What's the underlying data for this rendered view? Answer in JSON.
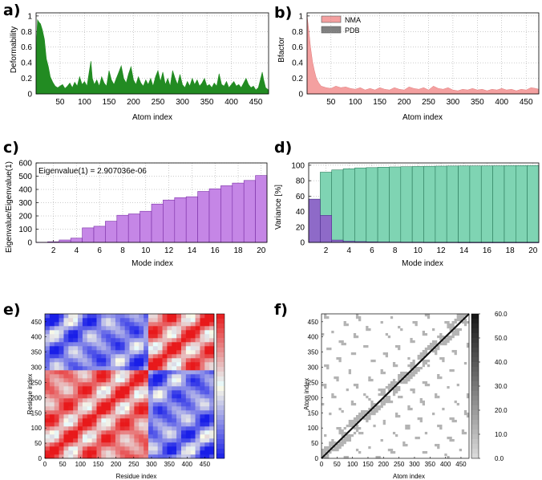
{
  "colors": {
    "deform": "#228b22",
    "nma": "#f4a0a0",
    "pdb": "#808080",
    "eigen": "#c586e6",
    "eigen_edge": "#7a2fa6",
    "variance_cum": "#7fd4b3",
    "variance_ind": "#8e6ac8",
    "corr_pos": "#e8191b",
    "corr_neg": "#1a22e0",
    "map_gray": "#b3b3b3",
    "map_dark": "#111111"
  },
  "chart_data": [
    {
      "id": "a",
      "panel_label": "a)",
      "type": "area",
      "xlabel": "Atom index",
      "ylabel": "Deformability",
      "xlim": [
        1,
        476
      ],
      "ylim": [
        0,
        1
      ],
      "xticks": [
        "50",
        "100",
        "150",
        "200",
        "250",
        "300",
        "350",
        "400",
        "450"
      ],
      "xtick_values": [
        50,
        100,
        150,
        200,
        250,
        300,
        350,
        400,
        450
      ],
      "yticks": [
        "0",
        "0.2",
        "0.4",
        "0.6",
        "0.8",
        "1"
      ],
      "ytick_values": [
        0,
        0.2,
        0.4,
        0.6,
        0.8,
        1
      ],
      "grid": true,
      "profile": [
        [
          1,
          0.55
        ],
        [
          4,
          0.95
        ],
        [
          7,
          0.92
        ],
        [
          10,
          0.9
        ],
        [
          14,
          0.82
        ],
        [
          18,
          0.7
        ],
        [
          22,
          0.45
        ],
        [
          26,
          0.35
        ],
        [
          30,
          0.22
        ],
        [
          35,
          0.15
        ],
        [
          40,
          0.1
        ],
        [
          45,
          0.08
        ],
        [
          50,
          0.1
        ],
        [
          55,
          0.12
        ],
        [
          60,
          0.07
        ],
        [
          65,
          0.1
        ],
        [
          70,
          0.14
        ],
        [
          75,
          0.08
        ],
        [
          80,
          0.15
        ],
        [
          85,
          0.1
        ],
        [
          90,
          0.22
        ],
        [
          95,
          0.12
        ],
        [
          100,
          0.16
        ],
        [
          105,
          0.1
        ],
        [
          110,
          0.3
        ],
        [
          113,
          0.42
        ],
        [
          116,
          0.2
        ],
        [
          120,
          0.12
        ],
        [
          125,
          0.18
        ],
        [
          130,
          0.1
        ],
        [
          135,
          0.22
        ],
        [
          140,
          0.14
        ],
        [
          145,
          0.1
        ],
        [
          150,
          0.3
        ],
        [
          155,
          0.18
        ],
        [
          160,
          0.12
        ],
        [
          165,
          0.2
        ],
        [
          170,
          0.28
        ],
        [
          175,
          0.36
        ],
        [
          180,
          0.2
        ],
        [
          185,
          0.14
        ],
        [
          190,
          0.26
        ],
        [
          195,
          0.35
        ],
        [
          200,
          0.18
        ],
        [
          205,
          0.12
        ],
        [
          210,
          0.22
        ],
        [
          215,
          0.14
        ],
        [
          220,
          0.1
        ],
        [
          225,
          0.18
        ],
        [
          230,
          0.12
        ],
        [
          235,
          0.2
        ],
        [
          240,
          0.1
        ],
        [
          245,
          0.22
        ],
        [
          250,
          0.3
        ],
        [
          255,
          0.16
        ],
        [
          260,
          0.28
        ],
        [
          265,
          0.12
        ],
        [
          270,
          0.2
        ],
        [
          275,
          0.1
        ],
        [
          280,
          0.3
        ],
        [
          285,
          0.2
        ],
        [
          290,
          0.12
        ],
        [
          295,
          0.25
        ],
        [
          300,
          0.12
        ],
        [
          305,
          0.08
        ],
        [
          310,
          0.16
        ],
        [
          315,
          0.1
        ],
        [
          320,
          0.2
        ],
        [
          325,
          0.12
        ],
        [
          330,
          0.18
        ],
        [
          335,
          0.1
        ],
        [
          340,
          0.14
        ],
        [
          345,
          0.2
        ],
        [
          350,
          0.1
        ],
        [
          355,
          0.12
        ],
        [
          360,
          0.08
        ],
        [
          365,
          0.14
        ],
        [
          370,
          0.1
        ],
        [
          375,
          0.26
        ],
        [
          380,
          0.12
        ],
        [
          385,
          0.1
        ],
        [
          390,
          0.16
        ],
        [
          395,
          0.08
        ],
        [
          400,
          0.12
        ],
        [
          405,
          0.16
        ],
        [
          410,
          0.1
        ],
        [
          415,
          0.12
        ],
        [
          420,
          0.08
        ],
        [
          425,
          0.14
        ],
        [
          430,
          0.2
        ],
        [
          435,
          0.12
        ],
        [
          440,
          0.08
        ],
        [
          445,
          0.1
        ],
        [
          450,
          0.05
        ],
        [
          455,
          0.08
        ],
        [
          460,
          0.2
        ],
        [
          463,
          0.28
        ],
        [
          466,
          0.18
        ],
        [
          470,
          0.08
        ],
        [
          476,
          0.05
        ]
      ]
    },
    {
      "id": "b",
      "panel_label": "b)",
      "type": "area",
      "xlabel": "Atom index",
      "ylabel": "Bfactor",
      "xlim": [
        1,
        476
      ],
      "ylim": [
        0,
        1
      ],
      "xticks": [
        "50",
        "100",
        "150",
        "200",
        "250",
        "300",
        "350",
        "400",
        "450"
      ],
      "xtick_values": [
        50,
        100,
        150,
        200,
        250,
        300,
        350,
        400,
        450
      ],
      "yticks": [
        "0",
        "0.2",
        "0.4",
        "0.6",
        "0.8",
        "1"
      ],
      "ytick_values": [
        0,
        0.2,
        0.4,
        0.6,
        0.8,
        1
      ],
      "grid": true,
      "legend": [
        "NMA",
        "PDB"
      ],
      "legend_position": "top-left",
      "nma_profile": [
        [
          1,
          1.0
        ],
        [
          4,
          0.85
        ],
        [
          8,
          0.6
        ],
        [
          12,
          0.42
        ],
        [
          16,
          0.3
        ],
        [
          20,
          0.2
        ],
        [
          25,
          0.14
        ],
        [
          30,
          0.1
        ],
        [
          40,
          0.08
        ],
        [
          50,
          0.07
        ],
        [
          60,
          0.1
        ],
        [
          70,
          0.08
        ],
        [
          80,
          0.09
        ],
        [
          90,
          0.07
        ],
        [
          100,
          0.06
        ],
        [
          110,
          0.08
        ],
        [
          120,
          0.05
        ],
        [
          130,
          0.07
        ],
        [
          140,
          0.05
        ],
        [
          150,
          0.08
        ],
        [
          160,
          0.06
        ],
        [
          170,
          0.05
        ],
        [
          180,
          0.08
        ],
        [
          190,
          0.06
        ],
        [
          200,
          0.05
        ],
        [
          210,
          0.09
        ],
        [
          220,
          0.07
        ],
        [
          230,
          0.06
        ],
        [
          240,
          0.08
        ],
        [
          250,
          0.05
        ],
        [
          260,
          0.1
        ],
        [
          270,
          0.07
        ],
        [
          280,
          0.06
        ],
        [
          290,
          0.08
        ],
        [
          300,
          0.05
        ],
        [
          310,
          0.04
        ],
        [
          320,
          0.06
        ],
        [
          330,
          0.05
        ],
        [
          340,
          0.07
        ],
        [
          350,
          0.05
        ],
        [
          360,
          0.06
        ],
        [
          370,
          0.04
        ],
        [
          380,
          0.06
        ],
        [
          390,
          0.05
        ],
        [
          400,
          0.07
        ],
        [
          410,
          0.05
        ],
        [
          420,
          0.06
        ],
        [
          430,
          0.04
        ],
        [
          440,
          0.06
        ],
        [
          450,
          0.05
        ],
        [
          460,
          0.08
        ],
        [
          470,
          0.07
        ],
        [
          476,
          0.06
        ]
      ]
    },
    {
      "id": "c",
      "panel_label": "c)",
      "type": "bar",
      "xlabel": "Mode index",
      "ylabel": "Eigenvalue/Eigenvalue(1)",
      "annotation": "Eigenvalue(1) = 2.907036e-06",
      "categories": [
        1,
        2,
        3,
        4,
        5,
        6,
        7,
        8,
        9,
        10,
        11,
        12,
        13,
        14,
        15,
        16,
        17,
        18,
        19,
        20
      ],
      "values": [
        1,
        5,
        18,
        32,
        110,
        122,
        160,
        205,
        215,
        235,
        290,
        320,
        338,
        345,
        385,
        405,
        428,
        448,
        468,
        505
      ],
      "xticks": [
        "2",
        "4",
        "6",
        "8",
        "10",
        "12",
        "14",
        "16",
        "18",
        "20"
      ],
      "xtick_values": [
        2,
        4,
        6,
        8,
        10,
        12,
        14,
        16,
        18,
        20
      ],
      "yticks": [
        "0",
        "100",
        "200",
        "300",
        "400",
        "500",
        "600"
      ],
      "ytick_values": [
        0,
        100,
        200,
        300,
        400,
        500,
        600
      ],
      "ylim": [
        0,
        600
      ],
      "xlim": [
        0.5,
        20.5
      ],
      "grid": true
    },
    {
      "id": "d",
      "panel_label": "d)",
      "type": "bar",
      "xlabel": "Mode index",
      "ylabel": "Variance [%]",
      "categories": [
        1,
        2,
        3,
        4,
        5,
        6,
        7,
        8,
        9,
        10,
        11,
        12,
        13,
        14,
        15,
        16,
        17,
        18,
        19,
        20
      ],
      "series": [
        {
          "name": "cumulative",
          "values": [
            56,
            91,
            94,
            95.5,
            96.5,
            97,
            97.5,
            97.8,
            98.1,
            98.4,
            98.6,
            98.8,
            99,
            99.1,
            99.2,
            99.3,
            99.4,
            99.5,
            99.6,
            99.7
          ]
        },
        {
          "name": "individual",
          "values": [
            56,
            35,
            3,
            1.5,
            1,
            0.7,
            0.5,
            0.4,
            0.3,
            0.3,
            0.2,
            0.2,
            0.2,
            0.1,
            0.1,
            0.1,
            0.1,
            0.1,
            0.1,
            0.1
          ]
        }
      ],
      "xticks": [
        "2",
        "4",
        "6",
        "8",
        "10",
        "12",
        "14",
        "16",
        "18",
        "20"
      ],
      "xtick_values": [
        2,
        4,
        6,
        8,
        10,
        12,
        14,
        16,
        18,
        20
      ],
      "yticks": [
        "0",
        "20",
        "40",
        "60",
        "80",
        "100"
      ],
      "ytick_values": [
        0,
        20,
        40,
        60,
        80,
        100
      ],
      "ylim": [
        0,
        100
      ],
      "xlim": [
        0.5,
        20.5
      ],
      "grid": true
    },
    {
      "id": "e",
      "panel_label": "e)",
      "type": "heatmap",
      "xlabel": "Residue index",
      "ylabel": "Residue index",
      "lim": [
        0,
        476
      ],
      "xticks": [
        "0",
        "50",
        "100",
        "150",
        "200",
        "250",
        "300",
        "350",
        "400",
        "450"
      ],
      "yticks": [
        "0",
        "50",
        "100",
        "150",
        "200",
        "250",
        "300",
        "350",
        "400",
        "450"
      ],
      "tick_values": [
        0,
        50,
        100,
        150,
        200,
        250,
        300,
        350,
        400,
        450
      ],
      "colorbar": [
        "red",
        "white",
        "blue"
      ]
    },
    {
      "id": "f",
      "panel_label": "f)",
      "type": "heatmap",
      "xlabel": "Atom index",
      "ylabel": "Atom index",
      "lim": [
        0,
        476
      ],
      "xticks": [
        "0",
        "50",
        "100",
        "150",
        "200",
        "250",
        "300",
        "350",
        "400",
        "450"
      ],
      "yticks": [
        "0",
        "50",
        "100",
        "150",
        "200",
        "250",
        "300",
        "350",
        "400",
        "450"
      ],
      "tick_values": [
        0,
        50,
        100,
        150,
        200,
        250,
        300,
        350,
        400,
        450
      ],
      "colorbar_ticks": [
        "60.0",
        "50.0",
        "40.0",
        "30.0",
        "20.0",
        "10.0",
        "0.0"
      ],
      "colorbar_values": [
        60,
        50,
        40,
        30,
        20,
        10,
        0
      ]
    }
  ]
}
